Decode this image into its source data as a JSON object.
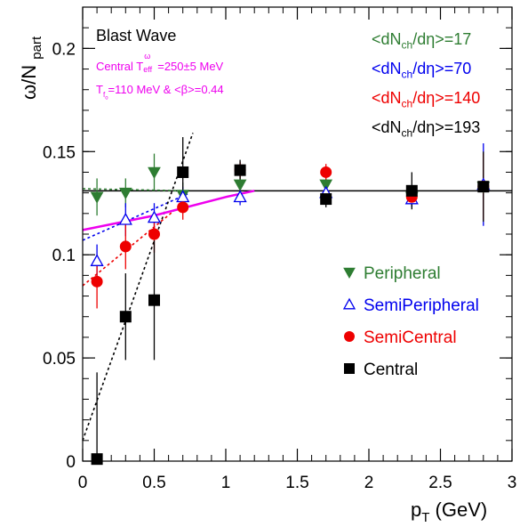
{
  "chart_data": {
    "type": "scatter",
    "title": "Blast Wave",
    "xlabel": "p_T (GeV)",
    "ylabel": "ω/N_part",
    "xlim": [
      0,
      3
    ],
    "ylim": [
      0,
      0.22
    ],
    "x_ticks": [
      "0",
      "0.5",
      "1",
      "1.5",
      "2",
      "2.5",
      "3"
    ],
    "y_ticks": [
      "0",
      "0.05",
      "0.1",
      "0.15",
      "0.2"
    ],
    "x_tick_values": [
      0,
      0.5,
      1,
      1.5,
      2,
      2.5,
      3
    ],
    "y_tick_values": [
      0,
      0.05,
      0.1,
      0.15,
      0.2
    ],
    "grid": false,
    "legend_position": "right",
    "annotations": {
      "line1": "Central T_eff^ω=250±5 MeV",
      "line2": "T_fo=110 MeV & <β>=0.44",
      "color": "#ee00ee"
    },
    "multiplicity_labels": [
      {
        "text": "<dN_ch/dη>=17",
        "color": "#2e7d32"
      },
      {
        "text": "<dN_ch/dη>=70",
        "color": "#0000ee"
      },
      {
        "text": "<dN_ch/dη>=140",
        "color": "#ee0000"
      },
      {
        "text": "<dN_ch/dη>=193",
        "color": "#000000"
      }
    ],
    "reference_line": {
      "y": 0.131,
      "x": [
        0,
        3
      ]
    },
    "blast_wave_curve": {
      "color": "#ee00ee",
      "x": [
        0,
        0.5,
        1.0,
        1.2
      ],
      "y": [
        0.112,
        0.119,
        0.128,
        0.131
      ]
    },
    "series": [
      {
        "name": "Peripheral",
        "color": "#2e7d32",
        "marker": "triangle-down-filled",
        "x": [
          0.1,
          0.3,
          0.5,
          0.7,
          1.1,
          1.7,
          2.3,
          2.8
        ],
        "y": [
          0.128,
          0.13,
          0.14,
          0.129,
          0.134,
          0.134,
          0.128,
          0.133
        ],
        "yerr": [
          0.009,
          0.007,
          0.009,
          0.006,
          0.004,
          0.003,
          0.004,
          0.006
        ],
        "fit": {
          "style": "dotted",
          "x": [
            0,
            0.7
          ],
          "y": [
            0.132,
            0.131
          ]
        }
      },
      {
        "name": "SemiPeripheral",
        "color": "#0000ee",
        "marker": "triangle-up-open",
        "x": [
          0.1,
          0.3,
          0.5,
          0.7,
          1.1,
          1.7,
          2.3,
          2.8
        ],
        "y": [
          0.097,
          0.117,
          0.118,
          0.128,
          0.128,
          0.13,
          0.127,
          0.134
        ],
        "yerr": [
          0.008,
          0.008,
          0.007,
          0.005,
          0.004,
          0.004,
          0.004,
          0.02
        ],
        "fit": {
          "style": "dotted",
          "x": [
            0,
            0.75
          ],
          "y": [
            0.107,
            0.13
          ]
        }
      },
      {
        "name": "SemiCentral",
        "color": "#ee0000",
        "marker": "circle-filled",
        "x": [
          0.1,
          0.3,
          0.5,
          0.7,
          1.1,
          1.7,
          2.3,
          2.8
        ],
        "y": [
          0.087,
          0.104,
          0.11,
          0.123,
          0.141,
          0.14,
          0.128,
          0.133
        ],
        "yerr": [
          0.013,
          0.011,
          0.009,
          0.006,
          0.004,
          0.004,
          0.003,
          0.016
        ],
        "fit": {
          "style": "dotted",
          "x": [
            0,
            0.72
          ],
          "y": [
            0.085,
            0.126
          ]
        }
      },
      {
        "name": "Central",
        "color": "#000000",
        "marker": "square-filled",
        "x": [
          0.1,
          0.3,
          0.5,
          0.7,
          1.1,
          1.7,
          2.3,
          2.8
        ],
        "y": [
          0.001,
          0.07,
          0.078,
          0.14,
          0.141,
          0.127,
          0.131,
          0.133
        ],
        "yerr": [
          0.042,
          0.021,
          0.029,
          0.017,
          0.005,
          0.004,
          0.009,
          0.017
        ],
        "fit": {
          "style": "dotted",
          "x": [
            0,
            0.77
          ],
          "y": [
            0.01,
            0.159
          ]
        }
      }
    ]
  }
}
